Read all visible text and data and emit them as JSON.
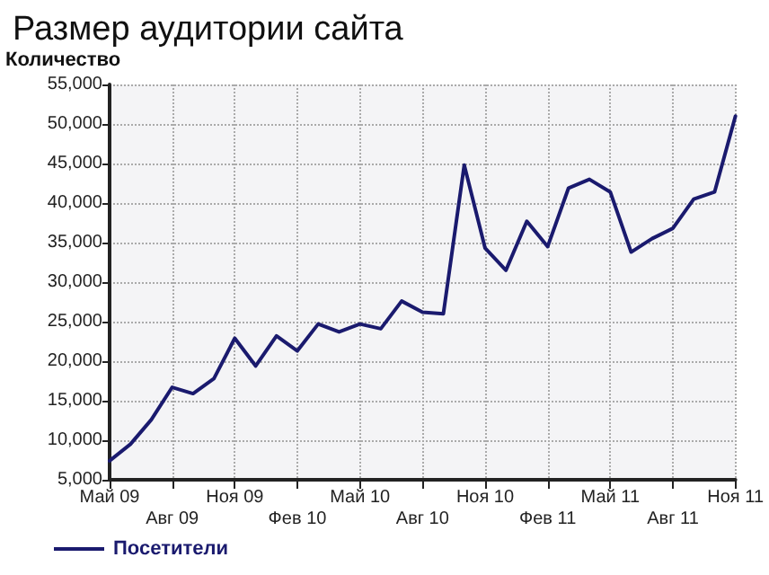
{
  "chart_data": {
    "type": "line",
    "title": "Размер аудитории сайта",
    "ylabel": "Количество",
    "categories": [
      "Май 09",
      null,
      null,
      "Авг 09",
      null,
      null,
      "Ноя 09",
      null,
      null,
      "Фев 10",
      null,
      null,
      "Май 10",
      null,
      null,
      "Авг 10",
      null,
      null,
      "Ноя 10",
      null,
      null,
      "Фев 11",
      null,
      null,
      "Май 11",
      null,
      null,
      "Авг 11",
      null,
      null,
      "Ноя 11"
    ],
    "series": [
      {
        "name": "Посетители",
        "color": "#1a1a6e",
        "values": [
          7400,
          9500,
          12600,
          16700,
          15900,
          17800,
          22900,
          19400,
          23200,
          21300,
          24700,
          23700,
          24700,
          24100,
          27600,
          26200,
          26000,
          44800,
          34300,
          31500,
          37700,
          34500,
          41900,
          43000,
          41400,
          33800,
          35500,
          36800,
          40500,
          41400,
          51000
        ]
      }
    ],
    "ylim": [
      5000,
      55000
    ],
    "yticks": [
      {
        "value": 5000,
        "label": "5,000"
      },
      {
        "value": 10000,
        "label": "10,000"
      },
      {
        "value": 15000,
        "label": "15,000"
      },
      {
        "value": 20000,
        "label": "20,000"
      },
      {
        "value": 25000,
        "label": "25,000"
      },
      {
        "value": 30000,
        "label": "30,000"
      },
      {
        "value": 35000,
        "label": "35,000"
      },
      {
        "value": 40000,
        "label": "40,000"
      },
      {
        "value": 45000,
        "label": "45,000"
      },
      {
        "value": 50000,
        "label": "50,000"
      },
      {
        "value": 55000,
        "label": "55,000"
      }
    ],
    "grid": true,
    "legend": "bottom left",
    "marker": "none",
    "line_style": "solid"
  }
}
